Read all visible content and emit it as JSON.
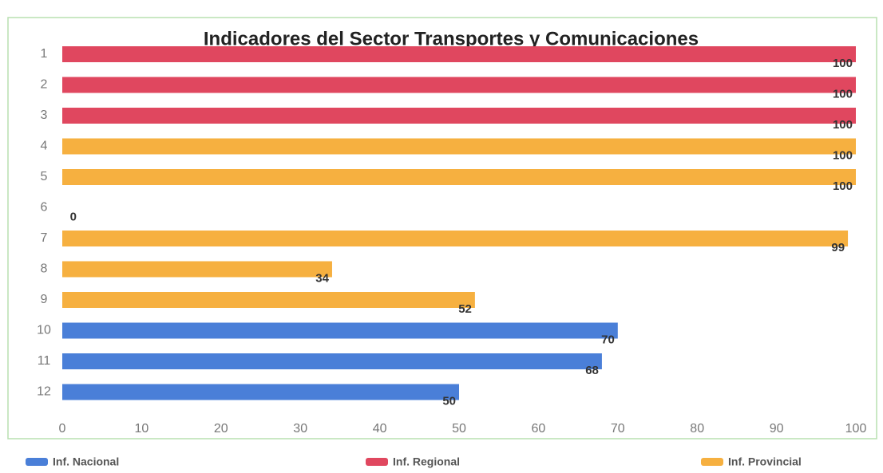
{
  "chart_data": {
    "type": "bar",
    "orientation": "horizontal",
    "title": "Indicadores del Sector Transportes y Comunicaciones",
    "categories": [
      "1",
      "2",
      "3",
      "4",
      "5",
      "6",
      "7",
      "8",
      "9",
      "10",
      "11",
      "12"
    ],
    "series": [
      {
        "name": "Inf. Nacional",
        "color": "#4a7fd8",
        "values": [
          null,
          null,
          null,
          null,
          null,
          null,
          null,
          null,
          null,
          70,
          68,
          50
        ]
      },
      {
        "name": "Inf. Regional",
        "color": "#e0475f",
        "values": [
          100,
          100,
          100,
          null,
          null,
          null,
          null,
          null,
          null,
          null,
          null,
          null
        ]
      },
      {
        "name": "Inf. Provincial",
        "color": "#f6b040",
        "values": [
          null,
          null,
          null,
          100,
          100,
          0,
          99,
          34,
          52,
          null,
          null,
          null
        ]
      }
    ],
    "xlim": [
      0,
      100
    ],
    "xticks": [
      0,
      10,
      20,
      30,
      40,
      50,
      60,
      70,
      80,
      90,
      100
    ]
  }
}
